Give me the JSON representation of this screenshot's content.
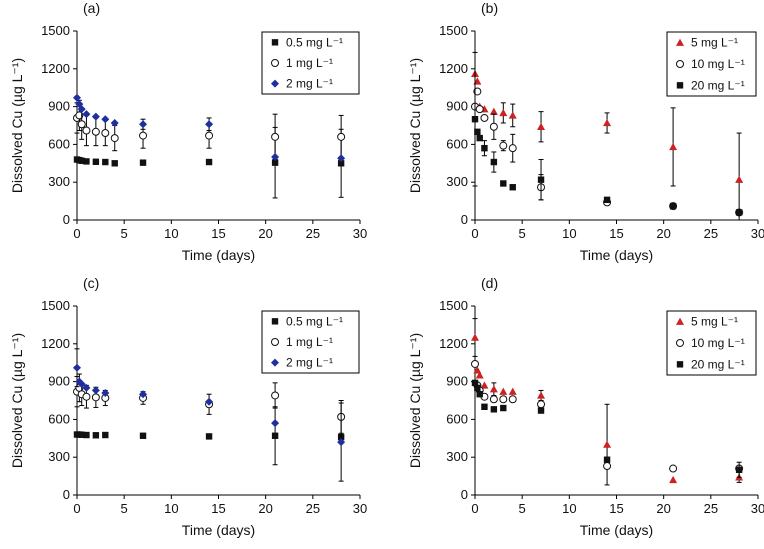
{
  "colors": {
    "black": "#111111",
    "blue": "#1f2f9e",
    "red": "#cc2222"
  },
  "chart_data": [
    {
      "panel": "(a)",
      "type": "scatter",
      "xlabel": "Time (days)",
      "ylabel": "Dissolved Cu (µg L⁻¹)",
      "xlim": [
        0,
        30
      ],
      "ylim": [
        0,
        1500
      ],
      "xticks": [
        0,
        5,
        10,
        15,
        20,
        25,
        30
      ],
      "yticks": [
        0,
        300,
        600,
        900,
        1200,
        1500
      ],
      "legend_position": "top-right",
      "series": [
        {
          "name": "0.5 mg L⁻¹",
          "marker": "square-filled",
          "color": "#111111",
          "points": [
            {
              "x": 0,
              "y": 480,
              "err": 0
            },
            {
              "x": 0.25,
              "y": 475,
              "err": 0
            },
            {
              "x": 0.5,
              "y": 470,
              "err": 0
            },
            {
              "x": 1,
              "y": 465,
              "err": 0
            },
            {
              "x": 2,
              "y": 462,
              "err": 0
            },
            {
              "x": 3,
              "y": 460,
              "err": 0
            },
            {
              "x": 4,
              "y": 450,
              "err": 0
            },
            {
              "x": 7,
              "y": 455,
              "err": 0
            },
            {
              "x": 14,
              "y": 460,
              "err": 0
            },
            {
              "x": 21,
              "y": 455,
              "err": 280
            },
            {
              "x": 28,
              "y": 450,
              "err": 270
            }
          ]
        },
        {
          "name": "1 mg L⁻¹",
          "marker": "circle-open",
          "color": "#111111",
          "points": [
            {
              "x": 0,
              "y": 810,
              "err": 120
            },
            {
              "x": 0.25,
              "y": 830,
              "err": 120
            },
            {
              "x": 0.5,
              "y": 760,
              "err": 120
            },
            {
              "x": 1,
              "y": 710,
              "err": 120
            },
            {
              "x": 2,
              "y": 700,
              "err": 110
            },
            {
              "x": 3,
              "y": 690,
              "err": 100
            },
            {
              "x": 4,
              "y": 650,
              "err": 100
            },
            {
              "x": 7,
              "y": 670,
              "err": 100
            },
            {
              "x": 14,
              "y": 670,
              "err": 100
            },
            {
              "x": 21,
              "y": 660,
              "err": 180
            },
            {
              "x": 28,
              "y": 660,
              "err": 170
            }
          ]
        },
        {
          "name": "2 mg L⁻¹",
          "marker": "diamond-filled",
          "color": "#1f2f9e",
          "points": [
            {
              "x": 0,
              "y": 970,
              "err": 0
            },
            {
              "x": 0.25,
              "y": 920,
              "err": 0
            },
            {
              "x": 0.5,
              "y": 880,
              "err": 0
            },
            {
              "x": 1,
              "y": 840,
              "err": 0
            },
            {
              "x": 2,
              "y": 820,
              "err": 0
            },
            {
              "x": 3,
              "y": 800,
              "err": 0
            },
            {
              "x": 4,
              "y": 770,
              "err": 0
            },
            {
              "x": 7,
              "y": 760,
              "err": 40
            },
            {
              "x": 14,
              "y": 760,
              "err": 50
            },
            {
              "x": 21,
              "y": 500,
              "err": 0
            },
            {
              "x": 28,
              "y": 490,
              "err": 0
            }
          ]
        }
      ]
    },
    {
      "panel": "(b)",
      "type": "scatter",
      "xlabel": "Time (days)",
      "ylabel": "Dissolved Cu (µg L⁻¹)",
      "xlim": [
        0,
        30
      ],
      "ylim": [
        0,
        1500
      ],
      "xticks": [
        0,
        5,
        10,
        15,
        20,
        25,
        30
      ],
      "yticks": [
        0,
        300,
        600,
        900,
        1200,
        1500
      ],
      "legend_position": "top-right",
      "series": [
        {
          "name": "5 mg L⁻¹",
          "marker": "triangle-filled",
          "color": "#cc2222",
          "points": [
            {
              "x": 0,
              "y": 1160,
              "err": 0
            },
            {
              "x": 0.25,
              "y": 1100,
              "err": 0
            },
            {
              "x": 0.5,
              "y": 900,
              "err": 0
            },
            {
              "x": 1,
              "y": 880,
              "err": 0
            },
            {
              "x": 2,
              "y": 860,
              "err": 0
            },
            {
              "x": 3,
              "y": 850,
              "err": 80
            },
            {
              "x": 4,
              "y": 830,
              "err": 90
            },
            {
              "x": 7,
              "y": 740,
              "err": 120
            },
            {
              "x": 14,
              "y": 770,
              "err": 80
            },
            {
              "x": 21,
              "y": 580,
              "err": 310
            },
            {
              "x": 28,
              "y": 320,
              "err": 370
            }
          ]
        },
        {
          "name": "10 mg L⁻¹",
          "marker": "circle-open",
          "color": "#111111",
          "points": [
            {
              "x": 0,
              "y": 900,
              "err": 0
            },
            {
              "x": 0.25,
              "y": 1020,
              "err": 0
            },
            {
              "x": 0.5,
              "y": 880,
              "err": 0
            },
            {
              "x": 1,
              "y": 810,
              "err": 0
            },
            {
              "x": 2,
              "y": 740,
              "err": 100
            },
            {
              "x": 3,
              "y": 590,
              "err": 40
            },
            {
              "x": 4,
              "y": 570,
              "err": 110
            },
            {
              "x": 7,
              "y": 260,
              "err": 100
            },
            {
              "x": 14,
              "y": 140,
              "err": 0
            },
            {
              "x": 21,
              "y": 110,
              "err": 0
            },
            {
              "x": 28,
              "y": 60,
              "err": 0
            }
          ]
        },
        {
          "name": "20 mg L⁻¹",
          "marker": "square-filled",
          "color": "#111111",
          "points": [
            {
              "x": 0,
              "y": 800,
              "err": 530
            },
            {
              "x": 0.25,
              "y": 700,
              "err": 0
            },
            {
              "x": 0.5,
              "y": 650,
              "err": 0
            },
            {
              "x": 1,
              "y": 570,
              "err": 60
            },
            {
              "x": 2,
              "y": 460,
              "err": 80
            },
            {
              "x": 3,
              "y": 290,
              "err": 0
            },
            {
              "x": 4,
              "y": 260,
              "err": 0
            },
            {
              "x": 7,
              "y": 320,
              "err": 160
            },
            {
              "x": 14,
              "y": 160,
              "err": 0
            },
            {
              "x": 21,
              "y": 110,
              "err": 0
            },
            {
              "x": 28,
              "y": 60,
              "err": 0
            }
          ]
        }
      ]
    },
    {
      "panel": "(c)",
      "type": "scatter",
      "xlabel": "Time (days)",
      "ylabel": "Dissolved Cu (µg L⁻¹)",
      "xlim": [
        0,
        30
      ],
      "ylim": [
        0,
        1500
      ],
      "xticks": [
        0,
        5,
        10,
        15,
        20,
        25,
        30
      ],
      "yticks": [
        0,
        300,
        600,
        900,
        1200,
        1500
      ],
      "legend_position": "top-right",
      "series": [
        {
          "name": "0.5 mg L⁻¹",
          "marker": "square-filled",
          "color": "#111111",
          "points": [
            {
              "x": 0,
              "y": 480,
              "err": 0
            },
            {
              "x": 0.25,
              "y": 480,
              "err": 0
            },
            {
              "x": 0.5,
              "y": 478,
              "err": 0
            },
            {
              "x": 1,
              "y": 476,
              "err": 0
            },
            {
              "x": 2,
              "y": 474,
              "err": 0
            },
            {
              "x": 3,
              "y": 476,
              "err": 0
            },
            {
              "x": 7,
              "y": 470,
              "err": 0
            },
            {
              "x": 14,
              "y": 465,
              "err": 0
            },
            {
              "x": 21,
              "y": 470,
              "err": 230
            },
            {
              "x": 28,
              "y": 460,
              "err": 0
            }
          ]
        },
        {
          "name": "1 mg L⁻¹",
          "marker": "circle-open",
          "color": "#111111",
          "points": [
            {
              "x": 0,
              "y": 820,
              "err": 120
            },
            {
              "x": 0.25,
              "y": 850,
              "err": 110
            },
            {
              "x": 0.5,
              "y": 800,
              "err": 90
            },
            {
              "x": 1,
              "y": 780,
              "err": 90
            },
            {
              "x": 2,
              "y": 775,
              "err": 80
            },
            {
              "x": 3,
              "y": 770,
              "err": 60
            },
            {
              "x": 7,
              "y": 770,
              "err": 50
            },
            {
              "x": 14,
              "y": 720,
              "err": 80
            },
            {
              "x": 21,
              "y": 790,
              "err": 100
            },
            {
              "x": 28,
              "y": 620,
              "err": 130
            }
          ]
        },
        {
          "name": "2 mg L⁻¹",
          "marker": "diamond-filled",
          "color": "#1f2f9e",
          "points": [
            {
              "x": 0,
              "y": 1010,
              "err": 150
            },
            {
              "x": 0.25,
              "y": 900,
              "err": 0
            },
            {
              "x": 0.5,
              "y": 880,
              "err": 0
            },
            {
              "x": 1,
              "y": 850,
              "err": 0
            },
            {
              "x": 2,
              "y": 830,
              "err": 0
            },
            {
              "x": 3,
              "y": 810,
              "err": 0
            },
            {
              "x": 7,
              "y": 800,
              "err": 0
            },
            {
              "x": 14,
              "y": 740,
              "err": 0
            },
            {
              "x": 21,
              "y": 570,
              "err": 0
            },
            {
              "x": 28,
              "y": 420,
              "err": 310
            }
          ]
        }
      ]
    },
    {
      "panel": "(d)",
      "type": "scatter",
      "xlabel": "Time (days)",
      "ylabel": "Dissolved Cu (µg L⁻¹)",
      "xlim": [
        0,
        30
      ],
      "ylim": [
        0,
        1500
      ],
      "xticks": [
        0,
        5,
        10,
        15,
        20,
        25,
        30
      ],
      "yticks": [
        0,
        300,
        600,
        900,
        1200,
        1500
      ],
      "legend_position": "top-right",
      "series": [
        {
          "name": "5 mg L⁻¹",
          "marker": "triangle-filled",
          "color": "#cc2222",
          "points": [
            {
              "x": 0,
              "y": 1250,
              "err": 150
            },
            {
              "x": 0.25,
              "y": 990,
              "err": 0
            },
            {
              "x": 0.5,
              "y": 950,
              "err": 0
            },
            {
              "x": 1,
              "y": 870,
              "err": 0
            },
            {
              "x": 2,
              "y": 840,
              "err": 50
            },
            {
              "x": 3,
              "y": 820,
              "err": 0
            },
            {
              "x": 4,
              "y": 820,
              "err": 0
            },
            {
              "x": 7,
              "y": 790,
              "err": 40
            },
            {
              "x": 14,
              "y": 400,
              "err": 320
            },
            {
              "x": 21,
              "y": 120,
              "err": 0
            },
            {
              "x": 28,
              "y": 140,
              "err": 40
            }
          ]
        },
        {
          "name": "10 mg L⁻¹",
          "marker": "circle-open",
          "color": "#111111",
          "points": [
            {
              "x": 0,
              "y": 1040,
              "err": 0
            },
            {
              "x": 0.25,
              "y": 870,
              "err": 0
            },
            {
              "x": 0.5,
              "y": 830,
              "err": 0
            },
            {
              "x": 1,
              "y": 780,
              "err": 0
            },
            {
              "x": 2,
              "y": 760,
              "err": 0
            },
            {
              "x": 3,
              "y": 760,
              "err": 0
            },
            {
              "x": 4,
              "y": 760,
              "err": 0
            },
            {
              "x": 7,
              "y": 720,
              "err": 0
            },
            {
              "x": 14,
              "y": 230,
              "err": 0
            },
            {
              "x": 21,
              "y": 210,
              "err": 0
            },
            {
              "x": 28,
              "y": 210,
              "err": 0
            }
          ]
        },
        {
          "name": "20 mg L⁻¹",
          "marker": "square-filled",
          "color": "#111111",
          "points": [
            {
              "x": 0,
              "y": 890,
              "err": 0
            },
            {
              "x": 0.25,
              "y": 850,
              "err": 0
            },
            {
              "x": 0.5,
              "y": 800,
              "err": 0
            },
            {
              "x": 1,
              "y": 700,
              "err": 0
            },
            {
              "x": 2,
              "y": 680,
              "err": 0
            },
            {
              "x": 3,
              "y": 690,
              "err": 0
            },
            {
              "x": 7,
              "y": 670,
              "err": 0
            },
            {
              "x": 14,
              "y": 280,
              "err": 0
            },
            {
              "x": 28,
              "y": 200,
              "err": 60
            }
          ]
        }
      ]
    }
  ]
}
